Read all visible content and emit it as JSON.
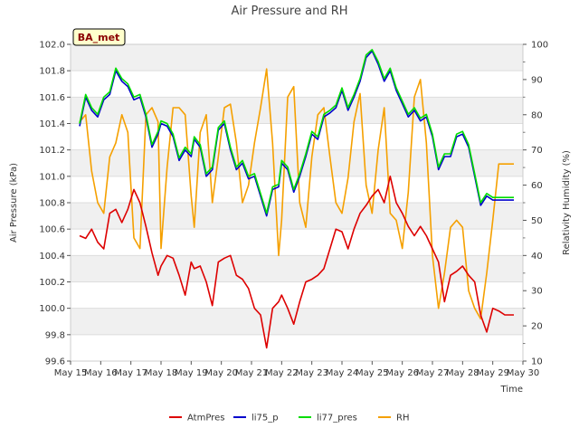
{
  "chart_data": {
    "type": "line",
    "title": "Air Pressure and RH",
    "xlabel": "Time",
    "ylabel_left": "Air Pressure (kPa)",
    "ylabel_right": "Relativity Humidity (%)",
    "badge": "BA_met",
    "x_tick_labels": [
      "May 15",
      "May 16",
      "May 17",
      "May 18",
      "May 19",
      "May 20",
      "May 21",
      "May 22",
      "May 23",
      "May 24",
      "May 25",
      "May 26",
      "May 27",
      "May 28",
      "May 29",
      "May 30"
    ],
    "xlim": [
      0,
      15
    ],
    "ylim_left": [
      99.6,
      102.0
    ],
    "yticks_left": [
      "99.6",
      "99.8",
      "100.0",
      "100.2",
      "100.4",
      "100.6",
      "100.8",
      "101.0",
      "101.2",
      "101.4",
      "101.6",
      "101.8",
      "102.0"
    ],
    "ylim_right": [
      10,
      100
    ],
    "yticks_right": [
      "10",
      "20",
      "30",
      "40",
      "50",
      "60",
      "70",
      "80",
      "90",
      "100"
    ],
    "grid": "horizontal bands",
    "legend_position": "bottom",
    "colors": {
      "AtmPres": "#dd0000",
      "li75_p": "#0000cc",
      "li77_pres": "#00dd00",
      "RH": "#f5a000"
    },
    "series": [
      {
        "name": "AtmPres",
        "axis": "left",
        "x": [
          0.3,
          0.5,
          0.7,
          0.9,
          1.1,
          1.3,
          1.5,
          1.7,
          1.9,
          2.1,
          2.3,
          2.5,
          2.7,
          2.9,
          3.0,
          3.2,
          3.4,
          3.6,
          3.8,
          4.0,
          4.1,
          4.3,
          4.5,
          4.7,
          4.9,
          5.1,
          5.3,
          5.5,
          5.7,
          5.9,
          6.1,
          6.3,
          6.5,
          6.7,
          6.9,
          7.0,
          7.2,
          7.4,
          7.6,
          7.8,
          8.0,
          8.2,
          8.4,
          8.6,
          8.8,
          9.0,
          9.2,
          9.4,
          9.6,
          9.8,
          10.0,
          10.2,
          10.4,
          10.6,
          10.8,
          11.0,
          11.2,
          11.4,
          11.6,
          11.8,
          12.0,
          12.2,
          12.4,
          12.6,
          12.8,
          13.0,
          13.2,
          13.4,
          13.6,
          13.8,
          14.0,
          14.2,
          14.4,
          14.6,
          14.7
        ],
        "y": [
          100.55,
          100.53,
          100.6,
          100.5,
          100.45,
          100.72,
          100.75,
          100.65,
          100.75,
          100.9,
          100.8,
          100.62,
          100.42,
          100.25,
          100.32,
          100.4,
          100.38,
          100.25,
          100.1,
          100.35,
          100.3,
          100.32,
          100.2,
          100.02,
          100.35,
          100.38,
          100.4,
          100.25,
          100.22,
          100.15,
          100.0,
          99.95,
          99.7,
          100.0,
          100.05,
          100.1,
          100.0,
          99.88,
          100.05,
          100.2,
          100.22,
          100.25,
          100.3,
          100.45,
          100.6,
          100.58,
          100.45,
          100.6,
          100.72,
          100.78,
          100.85,
          100.9,
          100.8,
          101.0,
          100.8,
          100.72,
          100.62,
          100.55,
          100.62,
          100.55,
          100.45,
          100.35,
          100.05,
          100.25,
          100.28,
          100.32,
          100.25,
          100.2,
          99.95,
          99.82,
          100.0,
          99.98,
          99.95,
          99.95,
          99.95
        ]
      },
      {
        "name": "li75_p",
        "axis": "left",
        "x": [
          0.3,
          0.5,
          0.7,
          0.9,
          1.1,
          1.3,
          1.5,
          1.7,
          1.9,
          2.1,
          2.3,
          2.5,
          2.7,
          2.9,
          3.0,
          3.2,
          3.4,
          3.6,
          3.8,
          4.0,
          4.1,
          4.3,
          4.5,
          4.7,
          4.9,
          5.1,
          5.3,
          5.5,
          5.7,
          5.9,
          6.1,
          6.3,
          6.5,
          6.7,
          6.9,
          7.0,
          7.2,
          7.4,
          7.6,
          7.8,
          8.0,
          8.2,
          8.4,
          8.6,
          8.8,
          9.0,
          9.2,
          9.4,
          9.6,
          9.8,
          10.0,
          10.2,
          10.4,
          10.6,
          10.8,
          11.0,
          11.2,
          11.4,
          11.6,
          11.8,
          12.0,
          12.2,
          12.4,
          12.6,
          12.8,
          13.0,
          13.2,
          13.4,
          13.6,
          13.8,
          14.0,
          14.2,
          14.4,
          14.6,
          14.7
        ],
        "y": [
          101.38,
          101.6,
          101.5,
          101.45,
          101.58,
          101.62,
          101.8,
          101.72,
          101.68,
          101.58,
          101.6,
          101.45,
          101.22,
          101.32,
          101.4,
          101.38,
          101.3,
          101.12,
          101.2,
          101.15,
          101.28,
          101.22,
          101.0,
          101.05,
          101.35,
          101.4,
          101.2,
          101.05,
          101.1,
          100.98,
          101.0,
          100.85,
          100.7,
          100.9,
          100.92,
          101.1,
          101.05,
          100.88,
          101.0,
          101.15,
          101.32,
          101.28,
          101.45,
          101.48,
          101.52,
          101.65,
          101.5,
          101.6,
          101.72,
          101.9,
          101.95,
          101.85,
          101.72,
          101.8,
          101.65,
          101.55,
          101.45,
          101.5,
          101.42,
          101.45,
          101.3,
          101.05,
          101.15,
          101.15,
          101.3,
          101.32,
          101.22,
          101.0,
          100.78,
          100.85,
          100.82,
          100.82,
          100.82,
          100.82,
          100.82
        ]
      },
      {
        "name": "li77_pres",
        "axis": "left",
        "x": [
          0.3,
          0.5,
          0.7,
          0.9,
          1.1,
          1.3,
          1.5,
          1.7,
          1.9,
          2.1,
          2.3,
          2.5,
          2.7,
          2.9,
          3.0,
          3.2,
          3.4,
          3.6,
          3.8,
          4.0,
          4.1,
          4.3,
          4.5,
          4.7,
          4.9,
          5.1,
          5.3,
          5.5,
          5.7,
          5.9,
          6.1,
          6.3,
          6.5,
          6.7,
          6.9,
          7.0,
          7.2,
          7.4,
          7.6,
          7.8,
          8.0,
          8.2,
          8.4,
          8.6,
          8.8,
          9.0,
          9.2,
          9.4,
          9.6,
          9.8,
          10.0,
          10.2,
          10.4,
          10.6,
          10.8,
          11.0,
          11.2,
          11.4,
          11.6,
          11.8,
          12.0,
          12.2,
          12.4,
          12.6,
          12.8,
          13.0,
          13.2,
          13.4,
          13.6,
          13.8,
          14.0,
          14.2,
          14.4,
          14.6,
          14.7
        ],
        "y": [
          101.4,
          101.62,
          101.52,
          101.47,
          101.6,
          101.64,
          101.82,
          101.74,
          101.7,
          101.6,
          101.62,
          101.47,
          101.24,
          101.34,
          101.42,
          101.4,
          101.32,
          101.14,
          101.22,
          101.17,
          101.3,
          101.24,
          101.02,
          101.07,
          101.37,
          101.42,
          101.22,
          101.07,
          101.12,
          101.0,
          101.02,
          100.87,
          100.72,
          100.92,
          100.94,
          101.12,
          101.07,
          100.9,
          101.02,
          101.17,
          101.34,
          101.3,
          101.47,
          101.5,
          101.54,
          101.67,
          101.52,
          101.62,
          101.74,
          101.92,
          101.96,
          101.87,
          101.74,
          101.82,
          101.67,
          101.57,
          101.47,
          101.52,
          101.44,
          101.47,
          101.32,
          101.07,
          101.17,
          101.17,
          101.32,
          101.34,
          101.24,
          101.02,
          100.8,
          100.87,
          100.84,
          100.84,
          100.84,
          100.84,
          100.84
        ]
      },
      {
        "name": "RH",
        "axis": "right",
        "x": [
          0.3,
          0.5,
          0.7,
          0.9,
          1.1,
          1.3,
          1.5,
          1.7,
          1.9,
          2.1,
          2.3,
          2.5,
          2.7,
          2.9,
          3.0,
          3.2,
          3.4,
          3.6,
          3.8,
          4.0,
          4.1,
          4.3,
          4.5,
          4.7,
          4.9,
          5.1,
          5.3,
          5.5,
          5.7,
          5.9,
          6.1,
          6.3,
          6.5,
          6.7,
          6.9,
          7.0,
          7.2,
          7.4,
          7.6,
          7.8,
          8.0,
          8.2,
          8.4,
          8.6,
          8.8,
          9.0,
          9.2,
          9.4,
          9.6,
          9.8,
          10.0,
          10.2,
          10.4,
          10.6,
          10.8,
          11.0,
          11.2,
          11.4,
          11.6,
          11.8,
          12.0,
          12.2,
          12.4,
          12.6,
          12.8,
          13.0,
          13.2,
          13.4,
          13.6,
          13.8,
          14.0,
          14.2,
          14.4,
          14.6,
          14.7
        ],
        "y": [
          78,
          80,
          64,
          55,
          52,
          68,
          72,
          80,
          75,
          45,
          42,
          80,
          82,
          78,
          42,
          65,
          82,
          82,
          80,
          57,
          48,
          75,
          80,
          55,
          68,
          82,
          83,
          72,
          55,
          60,
          72,
          82,
          93,
          72,
          40,
          50,
          85,
          88,
          55,
          48,
          68,
          80,
          82,
          68,
          55,
          52,
          62,
          78,
          86,
          60,
          52,
          70,
          82,
          52,
          50,
          42,
          58,
          85,
          90,
          72,
          40,
          25,
          35,
          48,
          50,
          48,
          30,
          25,
          22,
          35,
          50,
          66,
          66,
          66,
          66
        ]
      }
    ]
  }
}
